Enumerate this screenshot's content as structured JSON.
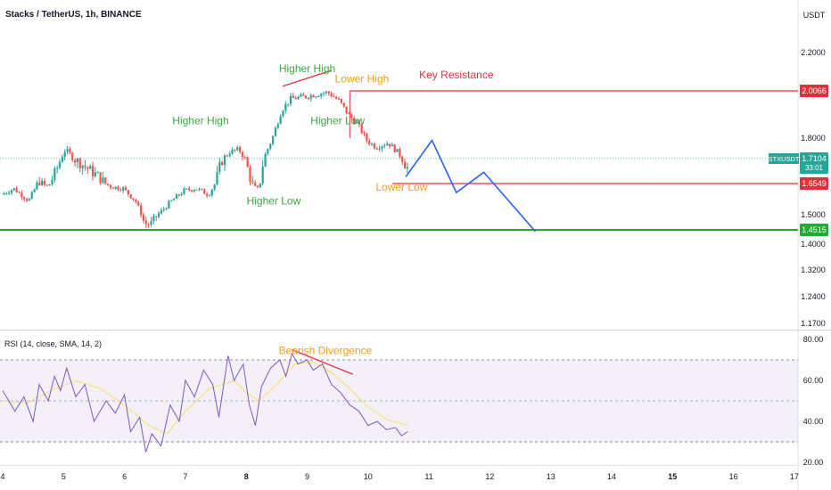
{
  "header": {
    "title": "Stacks / TetherUS, 1h, BINANCE",
    "currency": "USDT"
  },
  "colors": {
    "up": "#26a69a",
    "down": "#ef5350",
    "green_line": "#22ab30",
    "red_line": "#e0303a",
    "projection": "#2962ff",
    "rsi_line": "#7e57c2",
    "rsi_sma": "#f7e17a",
    "label_green": "#3aa63f",
    "label_orange": "#f39c12",
    "label_red": "#e0303a"
  },
  "chart_data": [
    {
      "type": "candlestick",
      "title": "Stacks / TetherUS, 1h, BINANCE",
      "x_tick_labels": [
        "4",
        "5",
        "6",
        "7",
        "8",
        "9",
        "10",
        "11",
        "12",
        "13",
        "14",
        "15",
        "16",
        "17"
      ],
      "y_tick_labels": [
        "2.2000",
        "2.0000",
        "1.8000",
        "1.5000",
        "1.4000",
        "1.3200",
        "1.2400",
        "1.1700"
      ],
      "price_anchors": [
        {
          "t": 4.0,
          "p": 1.6
        },
        {
          "t": 4.2,
          "p": 1.63
        },
        {
          "t": 4.45,
          "p": 1.57
        },
        {
          "t": 4.6,
          "p": 1.66
        },
        {
          "t": 4.75,
          "p": 1.64
        },
        {
          "t": 4.95,
          "p": 1.7
        },
        {
          "t": 5.05,
          "p": 1.75
        },
        {
          "t": 5.2,
          "p": 1.71
        },
        {
          "t": 5.4,
          "p": 1.69
        },
        {
          "t": 5.6,
          "p": 1.67
        },
        {
          "t": 5.8,
          "p": 1.64
        },
        {
          "t": 6.0,
          "p": 1.63
        },
        {
          "t": 6.2,
          "p": 1.57
        },
        {
          "t": 6.35,
          "p": 1.47
        },
        {
          "t": 6.45,
          "p": 1.47
        },
        {
          "t": 6.6,
          "p": 1.51
        },
        {
          "t": 6.8,
          "p": 1.57
        },
        {
          "t": 7.0,
          "p": 1.62
        },
        {
          "t": 7.2,
          "p": 1.63
        },
        {
          "t": 7.4,
          "p": 1.6
        },
        {
          "t": 7.6,
          "p": 1.7
        },
        {
          "t": 7.75,
          "p": 1.74
        },
        {
          "t": 7.9,
          "p": 1.75
        },
        {
          "t": 8.0,
          "p": 1.71
        },
        {
          "t": 8.1,
          "p": 1.66
        },
        {
          "t": 8.2,
          "p": 1.62
        },
        {
          "t": 8.32,
          "p": 1.72
        },
        {
          "t": 8.45,
          "p": 1.8
        },
        {
          "t": 8.6,
          "p": 1.92
        },
        {
          "t": 8.75,
          "p": 1.97
        },
        {
          "t": 9.0,
          "p": 1.98
        },
        {
          "t": 9.2,
          "p": 1.99
        },
        {
          "t": 9.35,
          "p": 2.0
        },
        {
          "t": 9.55,
          "p": 1.96
        },
        {
          "t": 9.7,
          "p": 1.9
        },
        {
          "t": 9.85,
          "p": 1.86
        },
        {
          "t": 10.0,
          "p": 1.79
        },
        {
          "t": 10.15,
          "p": 1.76
        },
        {
          "t": 10.35,
          "p": 1.78
        },
        {
          "t": 10.5,
          "p": 1.74
        },
        {
          "t": 10.65,
          "p": 1.69
        }
      ],
      "levels": [
        {
          "name": "Key Resistance",
          "value": 2.0066,
          "label": "2.0066"
        },
        {
          "name": "",
          "value": 1.6549,
          "label": "1.6549"
        },
        {
          "name": "",
          "value": 1.4515,
          "label": "1.4515"
        }
      ],
      "current_price": {
        "symbol": "STXUSDT",
        "value": "1.7104",
        "countdown": "33:01"
      },
      "annotations": [
        {
          "text": "Higher High",
          "t": 9.0,
          "p": 2.1,
          "color": "green"
        },
        {
          "text": "Lower High",
          "t": 9.9,
          "p": 2.05,
          "color": "orange"
        },
        {
          "text": "Key Resistance",
          "t": 11.45,
          "p": 2.07,
          "color": "red"
        },
        {
          "text": "Higher High",
          "t": 7.25,
          "p": 1.86,
          "color": "green"
        },
        {
          "text": "Higher Low",
          "t": 9.5,
          "p": 1.86,
          "color": "green"
        },
        {
          "text": "Higher Low",
          "t": 8.45,
          "p": 1.55,
          "color": "green"
        },
        {
          "text": "Lower Low",
          "t": 10.55,
          "p": 1.62,
          "color": "orange"
        }
      ],
      "trendline": {
        "t1": 8.6,
        "p1": 2.03,
        "t2": 9.4,
        "p2": 2.11
      },
      "projection": [
        {
          "t": 10.62,
          "p": 1.67
        },
        {
          "t": 11.05,
          "p": 1.79
        },
        {
          "t": 11.45,
          "p": 1.61
        },
        {
          "t": 11.9,
          "p": 1.68
        },
        {
          "t": 12.75,
          "p": 1.445
        }
      ]
    },
    {
      "type": "line",
      "title": "RSI (14, close, SMA, 14, 2)",
      "y_tick_labels": [
        "80.00",
        "60.00",
        "40.00",
        "20.00"
      ],
      "bands": {
        "upper": 70,
        "middle": 50,
        "lower": 30
      },
      "series": [
        {
          "name": "",
          "x": [
            4.0,
            4.2,
            4.35,
            4.5,
            4.6,
            4.75,
            4.85,
            4.95,
            5.05,
            5.2,
            5.35,
            5.5,
            5.7,
            5.85,
            6.0,
            6.1,
            6.25,
            6.35,
            6.45,
            6.6,
            6.75,
            6.9,
            7.0,
            7.15,
            7.3,
            7.45,
            7.55,
            7.7,
            7.8,
            7.95,
            8.05,
            8.15,
            8.25,
            8.4,
            8.55,
            8.65,
            8.75,
            8.85,
            9.0,
            9.1,
            9.25,
            9.4,
            9.55,
            9.7,
            9.85,
            10.0,
            10.15,
            10.3,
            10.45,
            10.55,
            10.65
          ],
          "values": [
            55,
            45,
            52,
            40,
            58,
            50,
            62,
            55,
            66,
            52,
            58,
            40,
            50,
            44,
            53,
            35,
            42,
            25,
            34,
            28,
            48,
            40,
            60,
            52,
            65,
            58,
            42,
            72,
            60,
            68,
            48,
            38,
            57,
            66,
            70,
            62,
            73,
            68,
            70,
            65,
            68,
            58,
            54,
            48,
            45,
            38,
            40,
            36,
            37,
            33,
            35
          ]
        },
        {
          "name": "",
          "x": [
            4.0,
            4.4,
            4.8,
            5.2,
            5.6,
            6.0,
            6.4,
            6.7,
            7.0,
            7.4,
            7.8,
            8.0,
            8.2,
            8.5,
            8.8,
            9.1,
            9.4,
            9.7,
            10.0,
            10.3,
            10.65
          ],
          "values": [
            50,
            49,
            55,
            60,
            56,
            48,
            38,
            34,
            45,
            56,
            60,
            54,
            50,
            58,
            68,
            69,
            64,
            56,
            47,
            41,
            38
          ]
        }
      ],
      "annotation": {
        "text": "Bearish Divergence",
        "t": 9.3,
        "v": 79
      },
      "divergence_line": {
        "t1": 8.75,
        "v1": 75,
        "t2": 9.75,
        "v2": 63
      }
    }
  ]
}
